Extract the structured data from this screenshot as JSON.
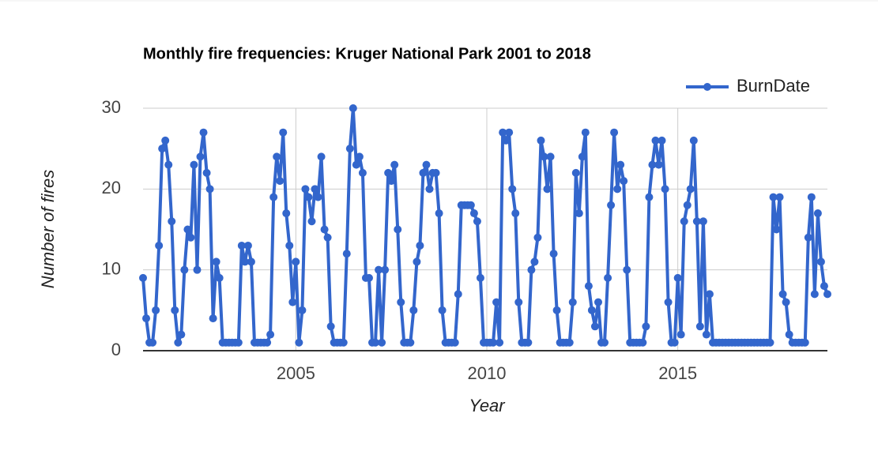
{
  "chart_data": {
    "type": "line",
    "title": "Monthly fire frequencies: Kruger National Park 2001 to 2018",
    "x_label": "Year",
    "y_label": "Number of fires",
    "x": [
      2001,
      2001.083,
      2001.167,
      2001.25,
      2001.333,
      2001.417,
      2001.5,
      2001.583,
      2001.667,
      2001.75,
      2001.833,
      2001.917,
      2002,
      2002.083,
      2002.167,
      2002.25,
      2002.333,
      2002.417,
      2002.5,
      2002.583,
      2002.667,
      2002.75,
      2002.833,
      2002.917,
      2003,
      2003.083,
      2003.167,
      2003.25,
      2003.333,
      2003.417,
      2003.5,
      2003.583,
      2003.667,
      2003.75,
      2003.833,
      2003.917,
      2004,
      2004.083,
      2004.167,
      2004.25,
      2004.333,
      2004.417,
      2004.5,
      2004.583,
      2004.667,
      2004.75,
      2004.833,
      2004.917,
      2005,
      2005.083,
      2005.167,
      2005.25,
      2005.333,
      2005.417,
      2005.5,
      2005.583,
      2005.667,
      2005.75,
      2005.833,
      2005.917,
      2006,
      2006.083,
      2006.167,
      2006.25,
      2006.333,
      2006.417,
      2006.5,
      2006.583,
      2006.667,
      2006.75,
      2006.833,
      2006.917,
      2007,
      2007.083,
      2007.167,
      2007.25,
      2007.333,
      2007.417,
      2007.5,
      2007.583,
      2007.667,
      2007.75,
      2007.833,
      2007.917,
      2008,
      2008.083,
      2008.167,
      2008.25,
      2008.333,
      2008.417,
      2008.5,
      2008.583,
      2008.667,
      2008.75,
      2008.833,
      2008.917,
      2009,
      2009.083,
      2009.167,
      2009.25,
      2009.333,
      2009.417,
      2009.5,
      2009.583,
      2009.667,
      2009.75,
      2009.833,
      2009.917,
      2010,
      2010.083,
      2010.167,
      2010.25,
      2010.333,
      2010.417,
      2010.5,
      2010.583,
      2010.667,
      2010.75,
      2010.833,
      2010.917,
      2011,
      2011.083,
      2011.167,
      2011.25,
      2011.333,
      2011.417,
      2011.5,
      2011.583,
      2011.667,
      2011.75,
      2011.833,
      2011.917,
      2012,
      2012.083,
      2012.167,
      2012.25,
      2012.333,
      2012.417,
      2012.5,
      2012.583,
      2012.667,
      2012.75,
      2012.833,
      2012.917,
      2013,
      2013.083,
      2013.167,
      2013.25,
      2013.333,
      2013.417,
      2013.5,
      2013.583,
      2013.667,
      2013.75,
      2013.833,
      2013.917,
      2014,
      2014.083,
      2014.167,
      2014.25,
      2014.333,
      2014.417,
      2014.5,
      2014.583,
      2014.667,
      2014.75,
      2014.833,
      2014.917,
      2015,
      2015.083,
      2015.167,
      2015.25,
      2015.333,
      2015.417,
      2015.5,
      2015.583,
      2015.667,
      2015.75,
      2015.833,
      2015.917,
      2016,
      2016.083,
      2016.167,
      2016.25,
      2016.333,
      2016.417,
      2016.5,
      2016.583,
      2016.667,
      2016.75,
      2016.833,
      2016.917,
      2017,
      2017.083,
      2017.167,
      2017.25,
      2017.333,
      2017.417,
      2017.5,
      2017.583,
      2017.667,
      2017.75,
      2017.833,
      2017.917,
      2018,
      2018.083,
      2018.167,
      2018.25,
      2018.333,
      2018.417,
      2018.5,
      2018.583,
      2018.667,
      2018.75,
      2018.833,
      2018.917
    ],
    "series": [
      {
        "name": "BurnDate",
        "color": "#3366cc",
        "values": [
          9,
          4,
          1,
          1,
          5,
          13,
          25,
          26,
          23,
          16,
          5,
          1,
          2,
          10,
          15,
          14,
          23,
          10,
          24,
          27,
          22,
          20,
          4,
          11,
          9,
          1,
          1,
          1,
          1,
          1,
          1,
          13,
          11,
          13,
          11,
          1,
          1,
          1,
          1,
          1,
          2,
          19,
          24,
          21,
          27,
          17,
          13,
          6,
          11,
          1,
          5,
          20,
          19,
          16,
          20,
          19,
          24,
          15,
          14,
          3,
          1,
          1,
          1,
          1,
          12,
          25,
          30,
          23,
          24,
          22,
          9,
          9,
          1,
          1,
          10,
          1,
          10,
          22,
          21,
          23,
          15,
          6,
          1,
          1,
          1,
          5,
          11,
          13,
          22,
          23,
          20,
          22,
          22,
          17,
          5,
          1,
          1,
          1,
          1,
          7,
          18,
          18,
          18,
          18,
          17,
          16,
          9,
          1,
          1,
          1,
          1,
          6,
          1,
          27,
          26,
          27,
          20,
          17,
          6,
          1,
          1,
          1,
          10,
          11,
          14,
          26,
          24,
          20,
          24,
          12,
          5,
          1,
          1,
          1,
          1,
          6,
          22,
          17,
          24,
          27,
          8,
          5,
          3,
          6,
          1,
          1,
          9,
          18,
          27,
          20,
          23,
          21,
          10,
          1,
          1,
          1,
          1,
          1,
          3,
          19,
          23,
          26,
          23,
          26,
          20,
          6,
          1,
          1,
          9,
          2,
          16,
          18,
          20,
          26,
          16,
          3,
          16,
          2,
          7,
          1,
          1,
          1,
          1,
          1,
          1,
          1,
          1,
          1,
          1,
          1,
          1,
          1,
          1,
          1,
          1,
          1,
          1,
          1,
          19,
          15,
          19,
          7,
          6,
          2,
          1,
          1,
          1,
          1,
          1,
          14,
          19,
          7,
          17,
          11,
          8,
          7
        ]
      }
    ],
    "xlim": [
      2001,
      2018.917
    ],
    "xticks": [
      2005,
      2010,
      2015
    ],
    "ylim": [
      0,
      30
    ],
    "yticks": [
      0,
      10,
      20,
      30
    ],
    "grid": true,
    "legend": "top-right"
  }
}
